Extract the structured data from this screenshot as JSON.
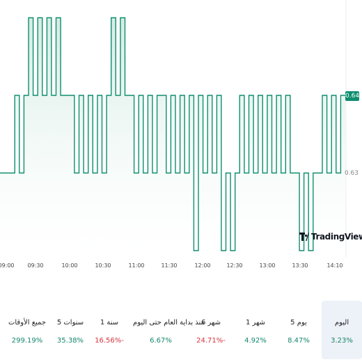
{
  "chart": {
    "y_labels": [
      "0.64",
      "0.63"
    ],
    "current_price": "0.64",
    "x_labels": [
      "09:00",
      "09:30",
      "10:00",
      "10:30",
      "11:00",
      "11:30",
      "12:00",
      "12:30",
      "13:00",
      "13:30",
      "14:10"
    ],
    "watermark": "TradingView",
    "line_color": "#0f8e6f",
    "fill_color": "#e6f4ef"
  },
  "chart_data": {
    "type": "area",
    "y_levels": [
      0.62,
      0.63,
      0.64,
      0.65
    ],
    "step_series": [
      0.63,
      0.63,
      0.64,
      0.63,
      0.64,
      0.65,
      0.64,
      0.65,
      0.64,
      0.65,
      0.64,
      0.65,
      0.64,
      0.64,
      0.64,
      0.63,
      0.64,
      0.63,
      0.64,
      0.63,
      0.64,
      0.63,
      0.64,
      0.65,
      0.64,
      0.65,
      0.64,
      0.64,
      0.63,
      0.64,
      0.63,
      0.64,
      0.63,
      0.64,
      0.64,
      0.63,
      0.64,
      0.63,
      0.64,
      0.63,
      0.64,
      0.62,
      0.64,
      0.63,
      0.64,
      0.63,
      0.64,
      0.62,
      0.63,
      0.62,
      0.63,
      0.64,
      0.63,
      0.64,
      0.63,
      0.64,
      0.63,
      0.64,
      0.63,
      0.64,
      0.63,
      0.64,
      0.63,
      0.63,
      0.62,
      0.63,
      0.62,
      0.63,
      0.63,
      0.64,
      0.63,
      0.64,
      0.63,
      0.64
    ],
    "ylabel_ticks": [
      "0.64",
      "0.63"
    ],
    "x_ticks": [
      "09:00",
      "09:30",
      "10:00",
      "10:30",
      "11:00",
      "11:30",
      "12:00",
      "12:30",
      "13:00",
      "13:30",
      "14:10"
    ],
    "grid": false
  },
  "performance": [
    {
      "label": "اليوم",
      "value": "3.23%",
      "sign": "pos",
      "active": true
    },
    {
      "label": "5 يوم",
      "value": "8.47%",
      "sign": "pos",
      "active": false
    },
    {
      "label": "1 شهر",
      "value": "4.92%",
      "sign": "pos",
      "active": false
    },
    {
      "label": "6 شهر",
      "value": "24.71%-",
      "sign": "neg",
      "active": false
    },
    {
      "label": "منذ بداية العام حتى اليوم",
      "value": "6.67%",
      "sign": "pos",
      "active": false
    },
    {
      "label": "1 سنة",
      "value": "16.56%-",
      "sign": "neg",
      "active": false
    },
    {
      "label": "5 سنوات",
      "value": "35.38%",
      "sign": "pos",
      "active": false
    },
    {
      "label": "جميع الأوقات",
      "value": "299.19%",
      "sign": "pos",
      "active": false
    }
  ]
}
